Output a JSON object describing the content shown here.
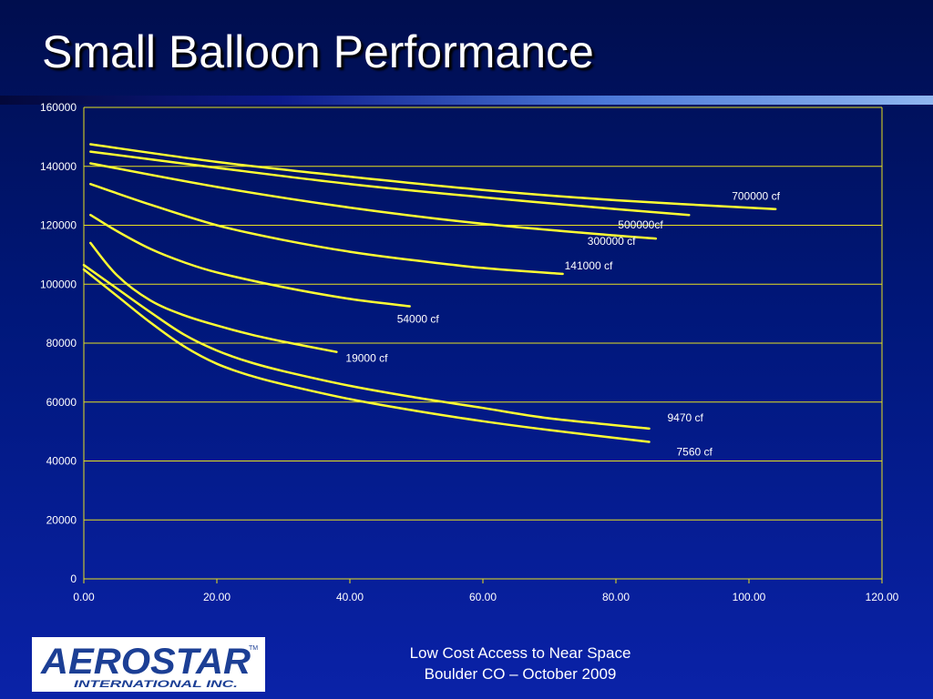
{
  "slide": {
    "title": "Small Balloon Performance",
    "footer_line1": "Low Cost Access to Near Space",
    "footer_line2": "Boulder CO – October 2009",
    "logo": {
      "text": "AEROSTAR",
      "tm": "TM",
      "subtext": "INTERNATIONAL INC."
    }
  },
  "colors": {
    "background": "#0a1a8c",
    "line": "#ffff33",
    "grid": "#e8e020",
    "text": "#ffffff",
    "logo_blue": "#1c3f95"
  },
  "chart_data": {
    "type": "line",
    "title": "",
    "xlabel": "",
    "ylabel": "",
    "xlim": [
      0,
      120
    ],
    "ylim": [
      0,
      160000
    ],
    "xticks": [
      "0.00",
      "20.00",
      "40.00",
      "60.00",
      "80.00",
      "100.00",
      "120.00"
    ],
    "yticks": [
      "0",
      "20000",
      "40000",
      "60000",
      "80000",
      "100000",
      "120000",
      "140000",
      "160000"
    ],
    "grid": "horizontal",
    "series": [
      {
        "name": "700000 cf",
        "x": [
          1,
          20,
          40,
          60,
          80,
          104
        ],
        "y": [
          147500,
          141500,
          136500,
          132000,
          128500,
          125500
        ]
      },
      {
        "name": "500000cf",
        "x": [
          1,
          20,
          40,
          60,
          80,
          91
        ],
        "y": [
          145000,
          139500,
          134000,
          129500,
          125500,
          123500
        ]
      },
      {
        "name": "300000 cf",
        "x": [
          1,
          20,
          40,
          60,
          80,
          86
        ],
        "y": [
          141000,
          133000,
          126000,
          120500,
          116500,
          115500
        ]
      },
      {
        "name": "141000 cf",
        "x": [
          1,
          10,
          20,
          30,
          40,
          50,
          60,
          72
        ],
        "y": [
          134000,
          127000,
          120000,
          115000,
          111000,
          108000,
          105500,
          103500
        ]
      },
      {
        "name": "54000 cf",
        "x": [
          1,
          5,
          10,
          15,
          20,
          30,
          40,
          49
        ],
        "y": [
          123500,
          118000,
          112000,
          107500,
          104000,
          99000,
          95000,
          92500
        ]
      },
      {
        "name": "19000 cf",
        "x": [
          1,
          5,
          10,
          15,
          20,
          25,
          30,
          38
        ],
        "y": [
          114000,
          103000,
          94500,
          89500,
          86000,
          83000,
          80500,
          77000
        ]
      },
      {
        "name": "9470 cf",
        "x": [
          0,
          5,
          10,
          15,
          20,
          25,
          30,
          40,
          50,
          60,
          70,
          85
        ],
        "y": [
          106500,
          98500,
          90500,
          83000,
          77500,
          73500,
          70500,
          65500,
          61500,
          58000,
          54500,
          51000
        ]
      },
      {
        "name": "7560 cf",
        "x": [
          0,
          5,
          10,
          15,
          20,
          25,
          30,
          40,
          50,
          60,
          70,
          85
        ],
        "y": [
          105000,
          96000,
          87000,
          79000,
          73000,
          69000,
          66000,
          61000,
          57000,
          53500,
          50500,
          46500
        ]
      }
    ]
  }
}
